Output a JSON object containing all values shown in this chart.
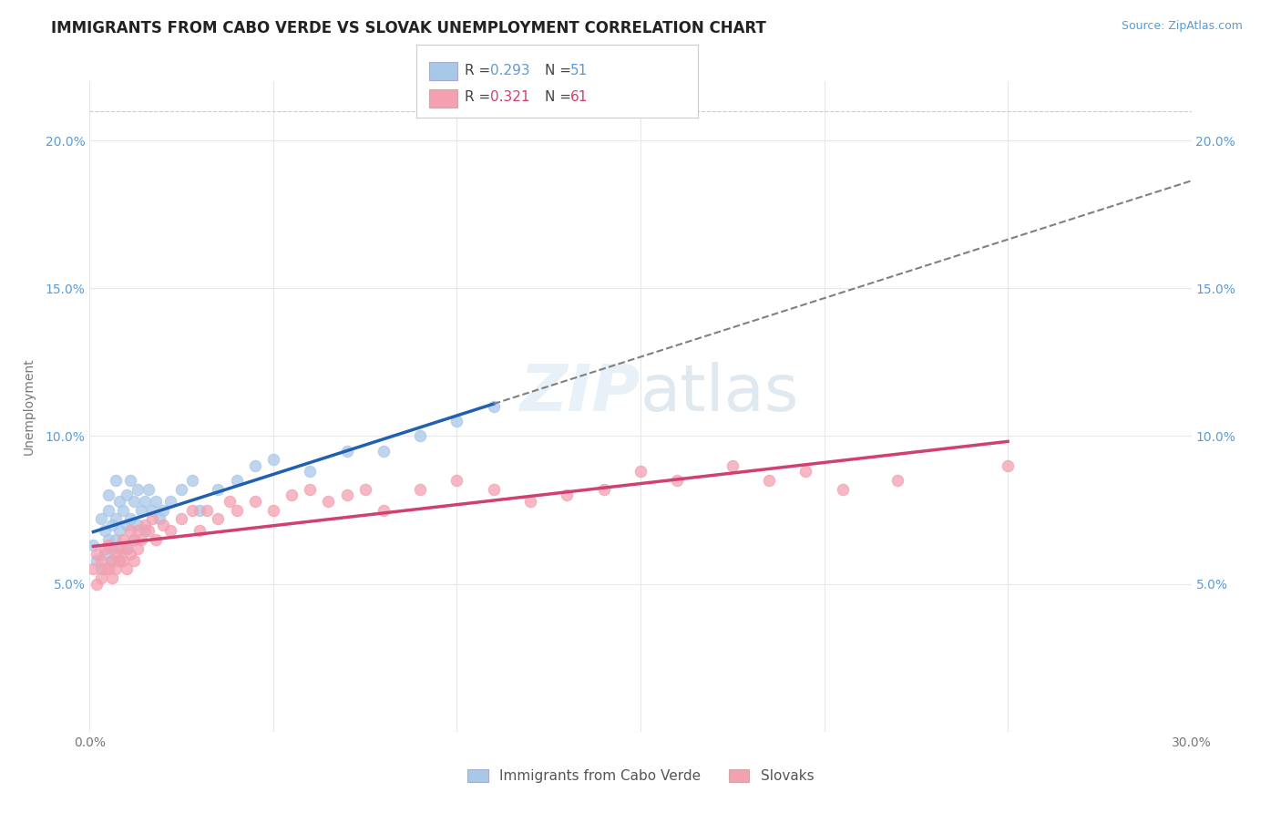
{
  "title": "IMMIGRANTS FROM CABO VERDE VS SLOVAK UNEMPLOYMENT CORRELATION CHART",
  "source": "Source: ZipAtlas.com",
  "ylabel_label": "Unemployment",
  "xlim": [
    0.0,
    0.3
  ],
  "ylim": [
    0.0,
    0.22
  ],
  "x_ticks": [
    0.0,
    0.05,
    0.1,
    0.15,
    0.2,
    0.25,
    0.3
  ],
  "x_tick_labels": [
    "0.0%",
    "",
    "",
    "",
    "",
    "",
    "30.0%"
  ],
  "y_ticks": [
    0.0,
    0.05,
    0.1,
    0.15,
    0.2
  ],
  "y_tick_labels": [
    "",
    "5.0%",
    "10.0%",
    "15.0%",
    "20.0%"
  ],
  "legend_label1": "Immigrants from Cabo Verde",
  "legend_label2": "Slovaks",
  "color1": "#a8c8e8",
  "color2": "#f4a0b0",
  "trendline1_color": "#2060b0",
  "trendline2_color": "#d04070",
  "trendline1_dash": "solid",
  "trendline2_dash": "solid",
  "watermark_text": "ZIPatlas",
  "background_color": "#ffffff",
  "grid_color": "#e8e8e8",
  "title_fontsize": 12,
  "axis_label_fontsize": 10,
  "tick_fontsize": 10,
  "cabo_verde_x": [
    0.001,
    0.002,
    0.003,
    0.003,
    0.004,
    0.004,
    0.005,
    0.005,
    0.005,
    0.006,
    0.006,
    0.006,
    0.007,
    0.007,
    0.007,
    0.008,
    0.008,
    0.008,
    0.009,
    0.009,
    0.01,
    0.01,
    0.01,
    0.011,
    0.011,
    0.012,
    0.012,
    0.013,
    0.013,
    0.014,
    0.015,
    0.015,
    0.016,
    0.017,
    0.018,
    0.019,
    0.02,
    0.022,
    0.025,
    0.028,
    0.03,
    0.035,
    0.04,
    0.045,
    0.05,
    0.06,
    0.07,
    0.08,
    0.09,
    0.1,
    0.11
  ],
  "cabo_verde_y": [
    0.063,
    0.058,
    0.072,
    0.055,
    0.068,
    0.06,
    0.075,
    0.065,
    0.08,
    0.07,
    0.062,
    0.058,
    0.085,
    0.072,
    0.065,
    0.078,
    0.068,
    0.058,
    0.075,
    0.062,
    0.08,
    0.07,
    0.062,
    0.085,
    0.072,
    0.078,
    0.065,
    0.082,
    0.07,
    0.075,
    0.078,
    0.068,
    0.082,
    0.075,
    0.078,
    0.072,
    0.075,
    0.078,
    0.082,
    0.085,
    0.075,
    0.082,
    0.085,
    0.09,
    0.092,
    0.088,
    0.095,
    0.095,
    0.1,
    0.105,
    0.11
  ],
  "slovaks_x": [
    0.001,
    0.002,
    0.002,
    0.003,
    0.003,
    0.004,
    0.004,
    0.005,
    0.005,
    0.006,
    0.006,
    0.007,
    0.007,
    0.008,
    0.008,
    0.009,
    0.009,
    0.01,
    0.01,
    0.011,
    0.011,
    0.012,
    0.012,
    0.013,
    0.013,
    0.014,
    0.015,
    0.016,
    0.017,
    0.018,
    0.02,
    0.022,
    0.025,
    0.028,
    0.03,
    0.032,
    0.035,
    0.038,
    0.04,
    0.045,
    0.05,
    0.055,
    0.06,
    0.065,
    0.07,
    0.075,
    0.08,
    0.09,
    0.1,
    0.11,
    0.12,
    0.13,
    0.14,
    0.15,
    0.16,
    0.175,
    0.185,
    0.195,
    0.205,
    0.22,
    0.25
  ],
  "slovaks_y": [
    0.055,
    0.05,
    0.06,
    0.052,
    0.058,
    0.055,
    0.062,
    0.055,
    0.063,
    0.058,
    0.052,
    0.06,
    0.055,
    0.062,
    0.058,
    0.065,
    0.058,
    0.062,
    0.055,
    0.068,
    0.06,
    0.065,
    0.058,
    0.062,
    0.068,
    0.065,
    0.07,
    0.068,
    0.072,
    0.065,
    0.07,
    0.068,
    0.072,
    0.075,
    0.068,
    0.075,
    0.072,
    0.078,
    0.075,
    0.078,
    0.075,
    0.08,
    0.082,
    0.078,
    0.08,
    0.082,
    0.075,
    0.082,
    0.085,
    0.082,
    0.078,
    0.08,
    0.082,
    0.088,
    0.085,
    0.09,
    0.085,
    0.088,
    0.082,
    0.085,
    0.09
  ]
}
